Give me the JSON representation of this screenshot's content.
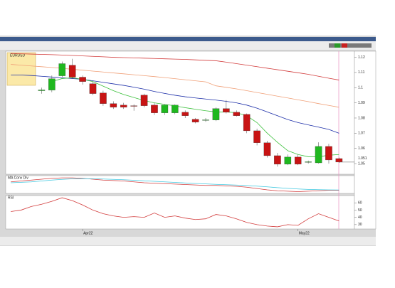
{
  "chart_data": [
    {
      "type": "candlestick",
      "title": "EURUSD",
      "categories": [
        null,
        null,
        null,
        null,
        null,
        null,
        null,
        "Apr22",
        null,
        null,
        null,
        null,
        null,
        null,
        null,
        null,
        null,
        null,
        null,
        null,
        null,
        null,
        null,
        null,
        null,
        null,
        null,
        null,
        "May22",
        null,
        null,
        null,
        null,
        null
      ],
      "open": [
        null,
        null,
        null,
        1.098,
        1.0984,
        1.1078,
        1.1148,
        1.1069,
        1.1026,
        1.0965,
        1.0895,
        1.0885,
        1.0881,
        1.0951,
        1.0885,
        1.0834,
        1.0834,
        1.0838,
        1.0792,
        1.0787,
        1.0787,
        1.0862,
        1.0838,
        1.0824,
        1.0716,
        1.0637,
        1.0552,
        1.0496,
        1.0543,
        1.051,
        1.0505,
        1.0613,
        1.0533,
        null
      ],
      "high": [
        null,
        null,
        null,
        1.1,
        1.108,
        1.1172,
        1.119,
        1.108,
        1.104,
        1.098,
        1.091,
        1.09,
        1.089,
        1.096,
        1.09,
        1.089,
        1.089,
        1.085,
        1.08,
        1.08,
        1.087,
        1.0918,
        1.085,
        1.083,
        1.073,
        1.065,
        1.057,
        1.056,
        1.056,
        1.052,
        1.064,
        1.063,
        1.054,
        null
      ],
      "low": [
        null,
        null,
        null,
        1.096,
        1.097,
        1.107,
        1.106,
        1.102,
        1.095,
        1.088,
        1.086,
        1.086,
        1.0848,
        1.087,
        1.082,
        1.082,
        1.0825,
        1.08,
        1.0765,
        1.0775,
        1.078,
        1.083,
        1.081,
        1.07,
        1.062,
        1.054,
        1.048,
        1.049,
        1.049,
        1.05,
        1.05,
        1.05,
        1.0505,
        null
      ],
      "close": [
        null,
        null,
        null,
        1.0985,
        1.1059,
        1.1158,
        1.1069,
        1.104,
        1.0961,
        1.0895,
        1.0871,
        1.0871,
        1.088,
        1.0881,
        1.0834,
        1.0885,
        1.0885,
        1.0815,
        1.0773,
        1.0788,
        1.0862,
        1.0838,
        1.0815,
        1.0716,
        1.0637,
        1.0552,
        1.0496,
        1.0543,
        1.0496,
        1.0512,
        1.0613,
        1.0524,
        1.051,
        null
      ],
      "up_color": "#1fb81f",
      "down_color": "#c81414",
      "series": [
        {
          "color": "#d23c3c",
          "values": [
            1.1225,
            1.1223,
            1.1221,
            1.1219,
            1.1217,
            1.1215,
            1.1212,
            1.1209,
            1.1206,
            1.1203,
            1.12,
            1.1198,
            1.1196,
            1.1194,
            1.1192,
            1.119,
            1.1188,
            1.1186,
            1.1183,
            1.118,
            1.1177,
            1.1168,
            1.1158,
            1.1148,
            1.1138,
            1.1128,
            1.1118,
            1.1108,
            1.1098,
            1.1088,
            1.1075,
            1.1062,
            1.105,
            null
          ]
        },
        {
          "color": "#f0a078",
          "values": [
            1.1153,
            1.1148,
            1.1143,
            1.1138,
            1.1133,
            1.1127,
            1.1121,
            1.1115,
            1.1109,
            1.1103,
            1.1097,
            1.1091,
            1.1085,
            1.1079,
            1.1073,
            1.1066,
            1.1059,
            1.1052,
            1.1045,
            1.1038,
            1.1012,
            1.1002,
            1.0992,
            1.098,
            1.0968,
            1.0956,
            1.0944,
            1.0932,
            1.092,
            1.0908,
            1.0895,
            1.0883,
            1.0871,
            null
          ]
        },
        {
          "color": "#1c2ea8",
          "values": [
            1.1083,
            1.1083,
            1.108,
            1.1075,
            1.107,
            1.1065,
            1.106,
            1.1055,
            1.1045,
            1.1035,
            1.1025,
            1.1015,
            1.1003,
            1.099,
            1.0975,
            1.0962,
            1.095,
            1.094,
            1.0932,
            1.0925,
            1.0918,
            1.091,
            1.09,
            1.0885,
            1.0865,
            1.084,
            1.0815,
            1.079,
            1.077,
            1.0755,
            1.074,
            1.0725,
            1.07,
            null
          ]
        },
        {
          "color": "#3cc03c",
          "values": [
            null,
            null,
            null,
            null,
            1.104,
            1.106,
            1.1065,
            1.1055,
            1.104,
            1.101,
            1.098,
            1.0955,
            1.0935,
            1.0915,
            1.09,
            1.089,
            1.088,
            1.0868,
            1.0858,
            1.0848,
            1.084,
            1.084,
            1.0835,
            1.0815,
            1.077,
            1.07,
            1.064,
            1.0585,
            1.056,
            1.0545,
            1.0545,
            1.0555,
            1.056,
            null
          ]
        }
      ],
      "last_price": {
        "value": 1.051,
        "label": "1.051"
      },
      "ylim": [
        1.043,
        1.124
      ],
      "yticks": [
        1.12,
        1.11,
        1.1,
        1.09,
        1.08,
        1.07,
        1.06,
        1.05
      ]
    },
    {
      "type": "line",
      "title": "MA Conv Div",
      "ylim": [
        -0.013,
        0.007
      ],
      "series": [
        {
          "color": "#d23c3c",
          "values": [
            0,
            0.001,
            0.002,
            0.003,
            0.004,
            0.0045,
            0.0045,
            0.004,
            0.003,
            0.002,
            0.0015,
            0.001,
            0,
            -0.001,
            -0.0015,
            -0.002,
            -0.0025,
            -0.003,
            -0.0035,
            -0.004,
            -0.004,
            -0.0045,
            -0.005,
            -0.006,
            -0.0075,
            -0.009,
            -0.01,
            -0.0105,
            -0.011,
            -0.0105,
            -0.01,
            -0.0095,
            -0.0095,
            null
          ]
        },
        {
          "color": "#40c8e0",
          "values": [
            -0.001,
            -0.0005,
            0,
            0.001,
            0.002,
            0.0028,
            0.0034,
            0.0036,
            0.0035,
            0.0032,
            0.0028,
            0.0024,
            0.0018,
            0.0012,
            0.0006,
            0,
            -0.0006,
            -0.0012,
            -0.0018,
            -0.0023,
            -0.0028,
            -0.0032,
            -0.0036,
            -0.0041,
            -0.0048,
            -0.0056,
            -0.0065,
            -0.0073,
            -0.008,
            -0.0085,
            -0.0088,
            -0.009,
            -0.0091,
            null
          ]
        }
      ]
    },
    {
      "type": "line",
      "title": "RSI",
      "ylim": [
        24,
        70
      ],
      "yticks": [
        60,
        50,
        40,
        30
      ],
      "series": [
        {
          "color": "#d23c3c",
          "values": [
            48,
            50,
            55,
            58,
            62,
            67,
            63,
            57,
            50,
            45,
            42,
            40,
            41,
            40,
            46,
            40,
            42,
            39,
            37,
            38,
            44,
            42,
            38,
            33,
            30,
            28,
            27,
            30,
            29,
            38,
            45,
            40,
            35,
            null
          ]
        }
      ]
    }
  ]
}
